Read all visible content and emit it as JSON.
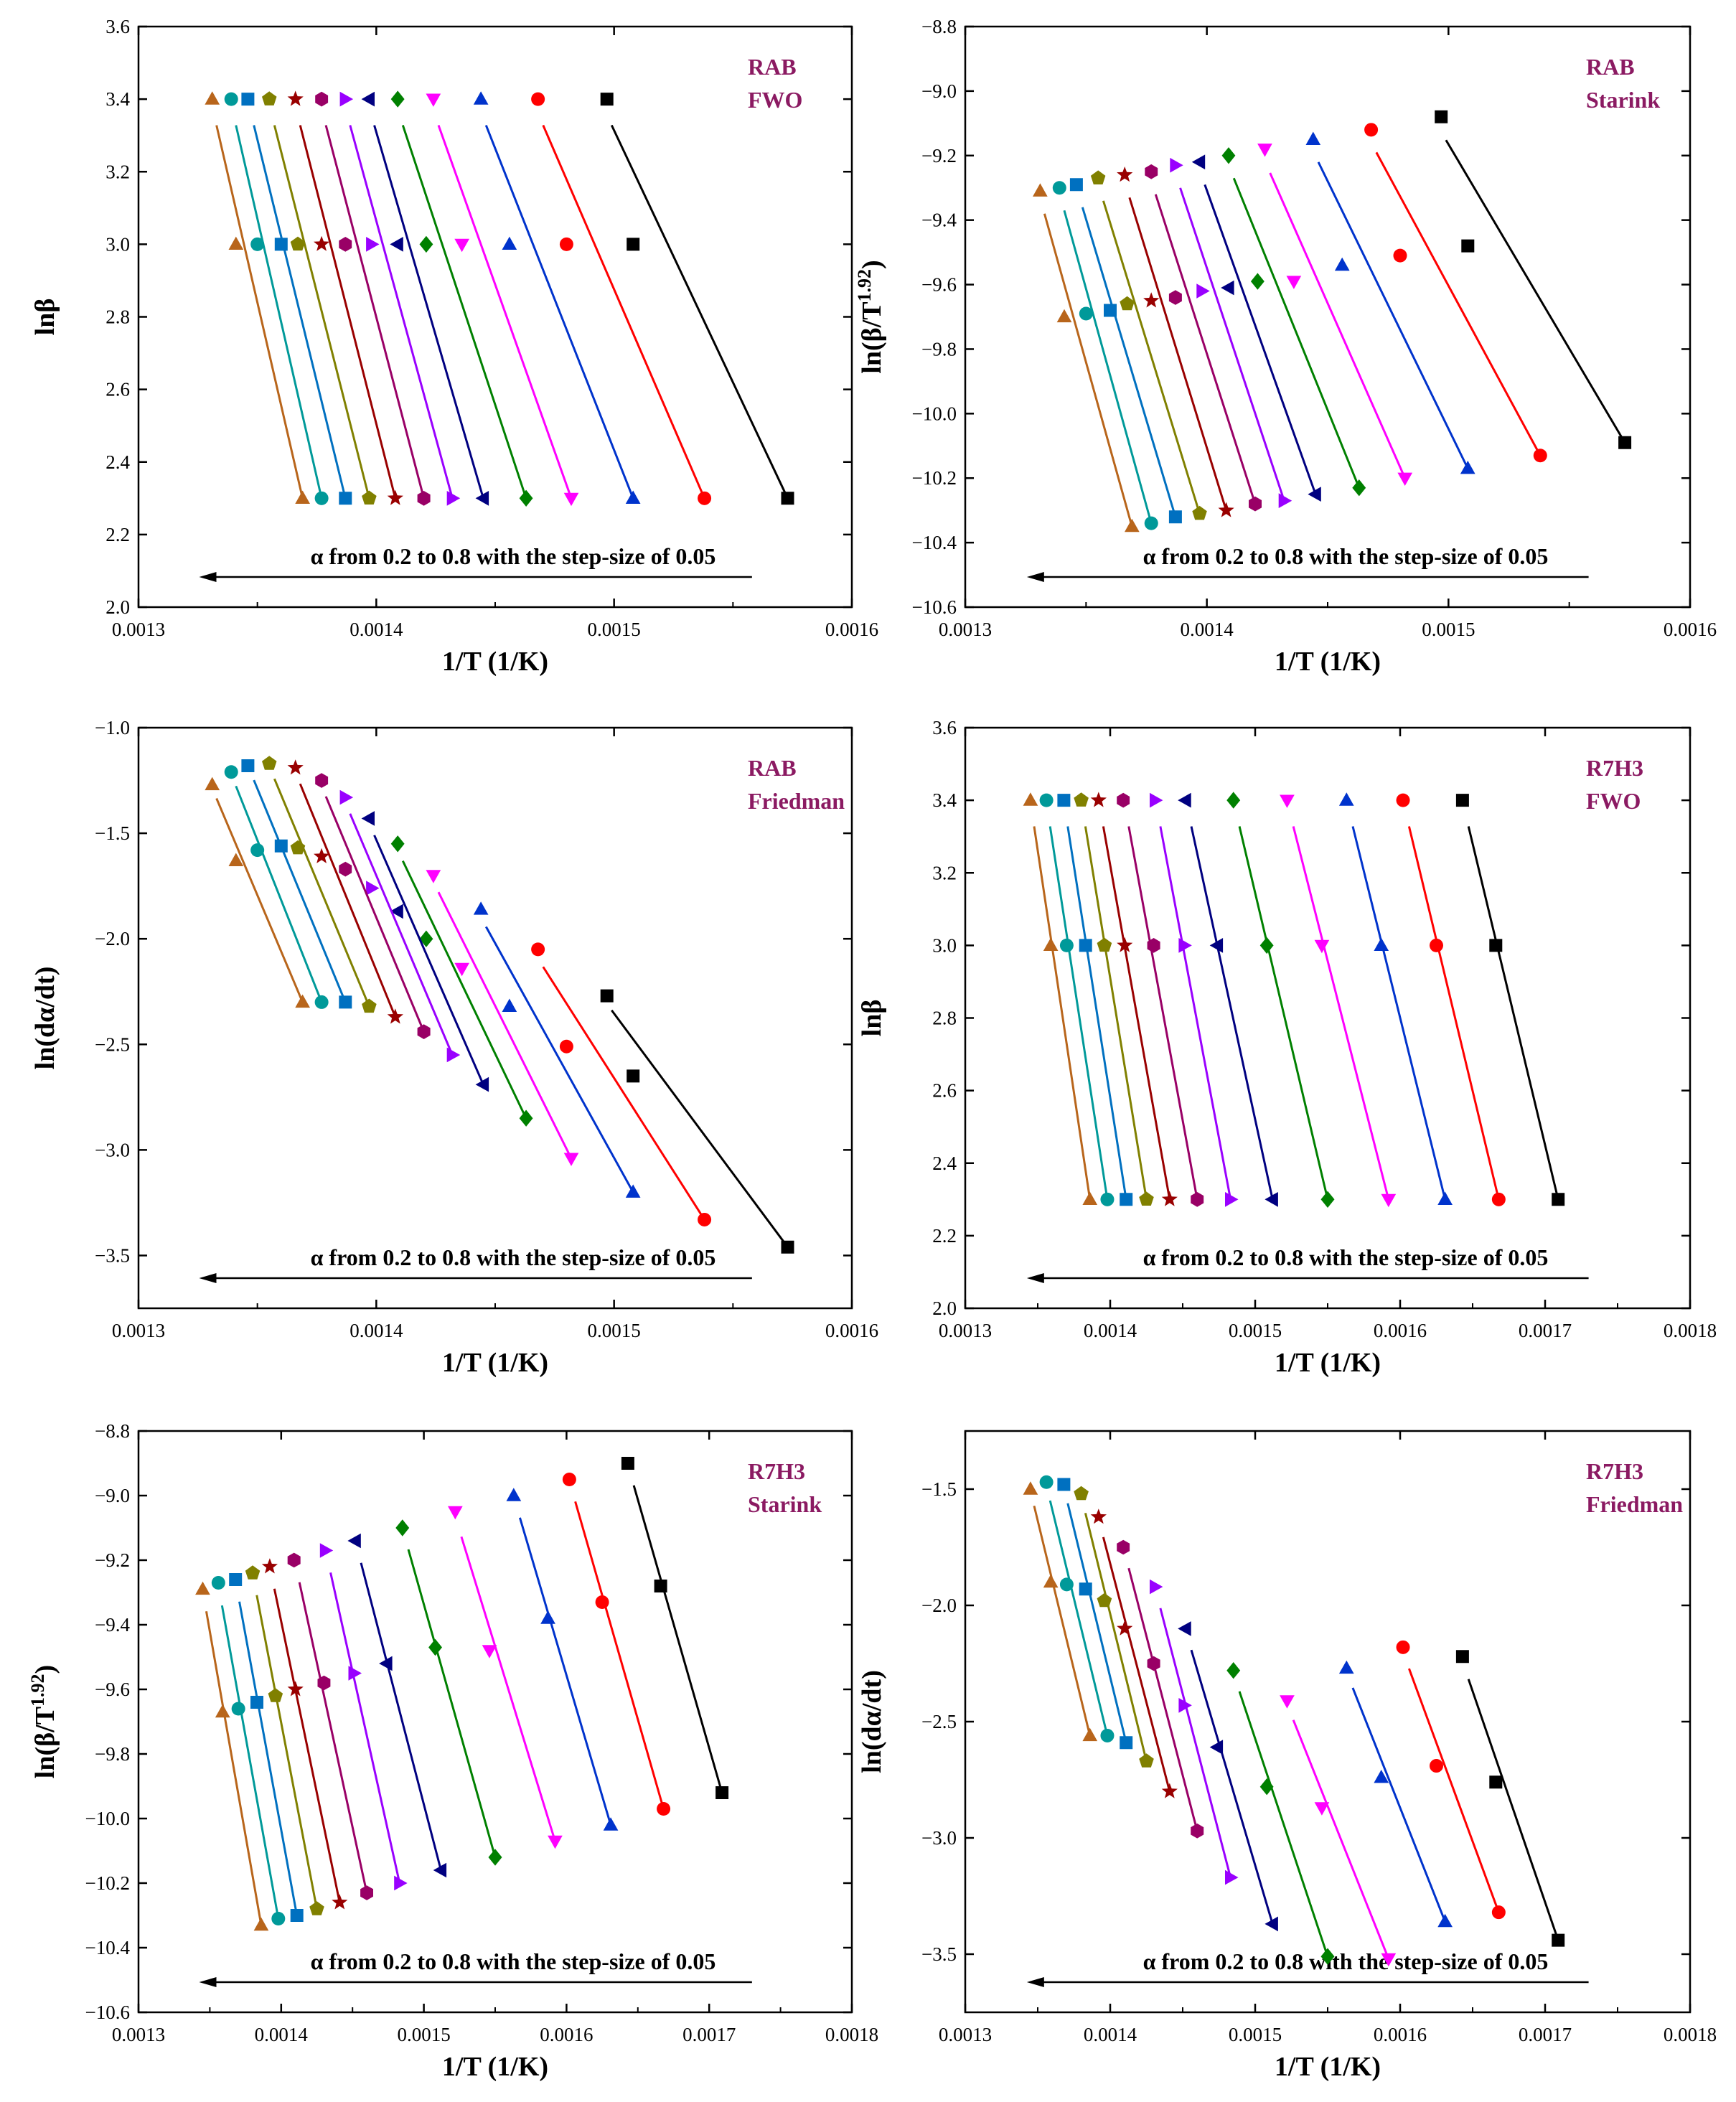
{
  "figure": {
    "annotation": "α from 0.2 to 0.8 with the step-size of 0.05",
    "label_color": "#8B1A62",
    "series_colors": [
      "#000000",
      "#ff0000",
      "#0033cc",
      "#ff00ff",
      "#008000",
      "#000080",
      "#9900ff",
      "#990066",
      "#990000",
      "#808000",
      "#0070c0",
      "#009999",
      "#b8651b"
    ],
    "series_markers": [
      "square",
      "circle",
      "triangle-up",
      "triangle-down",
      "diamond",
      "triangle-left",
      "triangle-right",
      "hexagon",
      "star",
      "pentagon",
      "square",
      "circle",
      "triangle-up"
    ]
  },
  "chart_data": [
    {
      "type": "scatter",
      "title": "RAB FWO",
      "label_lines": [
        "RAB",
        "FWO"
      ],
      "xlabel": "1/T (1/K)",
      "ylabel": "lnβ",
      "xlim": [
        0.0013,
        0.0016
      ],
      "ylim": [
        2.0,
        3.6
      ],
      "xticks": [
        "0.0013",
        "0.0014",
        "0.0015",
        "0.0016"
      ],
      "yticks": [
        "2.0",
        "2.2",
        "2.4",
        "2.6",
        "2.8",
        "3.0",
        "3.2",
        "3.4",
        "3.6"
      ],
      "beta_levels": [
        3.4,
        3.0,
        2.3
      ],
      "series_x": [
        [
          0.001497,
          0.001508,
          0.001573
        ],
        [
          0.001468,
          0.00148,
          0.001538
        ],
        [
          0.001444,
          0.001456,
          0.001508
        ],
        [
          0.001424,
          0.001436,
          0.001482
        ],
        [
          0.001409,
          0.001421,
          0.001463
        ],
        [
          0.001397,
          0.001409,
          0.001445
        ],
        [
          0.001387,
          0.001398,
          0.001432
        ],
        [
          0.001377,
          0.001387,
          0.00142
        ],
        [
          0.001366,
          0.001377,
          0.001408
        ],
        [
          0.001355,
          0.001367,
          0.001397
        ],
        [
          0.001346,
          0.00136,
          0.001387
        ],
        [
          0.001339,
          0.00135,
          0.001377
        ],
        [
          0.001331,
          0.001341,
          0.001369
        ]
      ]
    },
    {
      "type": "scatter",
      "title": "RAB Starink",
      "label_lines": [
        "RAB",
        "Starink"
      ],
      "xlabel": "1/T (1/K)",
      "ylabel": "ln(β/T^1.92)",
      "xlim": [
        0.0013,
        0.0016
      ],
      "ylim": [
        -10.6,
        -8.8
      ],
      "xticks": [
        "0.0013",
        "0.0014",
        "0.0015",
        "0.0016"
      ],
      "yticks": [
        "−10.6",
        "−10.4",
        "−10.2",
        "−10.0",
        "−9.8",
        "−9.6",
        "−9.4",
        "−9.2",
        "−9.0",
        "−8.8"
      ],
      "series_x": [
        [
          0.001497,
          0.001508,
          0.001573
        ],
        [
          0.001468,
          0.00148,
          0.001538
        ],
        [
          0.001444,
          0.001456,
          0.001508
        ],
        [
          0.001424,
          0.001436,
          0.001482
        ],
        [
          0.001409,
          0.001421,
          0.001463
        ],
        [
          0.001397,
          0.001409,
          0.001445
        ],
        [
          0.001387,
          0.001398,
          0.001432
        ],
        [
          0.001377,
          0.001387,
          0.00142
        ],
        [
          0.001366,
          0.001377,
          0.001408
        ],
        [
          0.001355,
          0.001367,
          0.001397
        ],
        [
          0.001346,
          0.00136,
          0.001387
        ],
        [
          0.001339,
          0.00135,
          0.001377
        ],
        [
          0.001331,
          0.001341,
          0.001369
        ]
      ],
      "series_y": [
        [
          -9.08,
          -9.48,
          -10.09
        ],
        [
          -9.12,
          -9.51,
          -10.13
        ],
        [
          -9.15,
          -9.54,
          -10.17
        ],
        [
          -9.18,
          -9.59,
          -10.2
        ],
        [
          -9.2,
          -9.59,
          -10.23
        ],
        [
          -9.22,
          -9.61,
          -10.25
        ],
        [
          -9.23,
          -9.62,
          -10.27
        ],
        [
          -9.25,
          -9.64,
          -10.28
        ],
        [
          -9.26,
          -9.65,
          -10.3
        ],
        [
          -9.27,
          -9.66,
          -10.31
        ],
        [
          -9.29,
          -9.68,
          -10.32
        ],
        [
          -9.3,
          -9.69,
          -10.34
        ],
        [
          -9.31,
          -9.7,
          -10.35
        ]
      ]
    },
    {
      "type": "scatter",
      "title": "RAB Friedman",
      "label_lines": [
        "RAB",
        "Friedman"
      ],
      "xlabel": "1/T (1/K)",
      "ylabel": "ln(dα/dt)",
      "xlim": [
        0.0013,
        0.0016
      ],
      "ylim": [
        -3.75,
        -1.0
      ],
      "xticks": [
        "0.0013",
        "0.0014",
        "0.0015",
        "0.0016"
      ],
      "yticks": [
        "−3.5",
        "−3.0",
        "−2.5",
        "−2.0",
        "−1.5",
        "−1.0"
      ],
      "ytick_values": [
        -3.5,
        -3.0,
        -2.5,
        -2.0,
        -1.5,
        -1.0
      ],
      "series_x": [
        [
          0.001497,
          0.001508,
          0.001573
        ],
        [
          0.001468,
          0.00148,
          0.001538
        ],
        [
          0.001444,
          0.001456,
          0.001508
        ],
        [
          0.001424,
          0.001436,
          0.001482
        ],
        [
          0.001409,
          0.001421,
          0.001463
        ],
        [
          0.001397,
          0.001409,
          0.001445
        ],
        [
          0.001387,
          0.001398,
          0.001432
        ],
        [
          0.001377,
          0.001387,
          0.00142
        ],
        [
          0.001366,
          0.001377,
          0.001408
        ],
        [
          0.001355,
          0.001367,
          0.001397
        ],
        [
          0.001346,
          0.00136,
          0.001387
        ],
        [
          0.001339,
          0.00135,
          0.001377
        ],
        [
          0.001331,
          0.001341,
          0.001369
        ]
      ],
      "series_y": [
        [
          -2.27,
          -2.65,
          -3.46
        ],
        [
          -2.05,
          -2.51,
          -3.33
        ],
        [
          -1.86,
          -2.32,
          -3.2
        ],
        [
          -1.7,
          -2.14,
          -3.04
        ],
        [
          -1.55,
          -2.0,
          -2.85
        ],
        [
          -1.43,
          -1.87,
          -2.69
        ],
        [
          -1.33,
          -1.76,
          -2.55
        ],
        [
          -1.25,
          -1.67,
          -2.44
        ],
        [
          -1.19,
          -1.61,
          -2.37
        ],
        [
          -1.17,
          -1.57,
          -2.32
        ],
        [
          -1.18,
          -1.56,
          -2.3
        ],
        [
          -1.21,
          -1.58,
          -2.3
        ],
        [
          -1.27,
          -1.63,
          -2.3
        ]
      ]
    },
    {
      "type": "scatter",
      "title": "R7H3 FWO",
      "label_lines": [
        "R7H3",
        "FWO"
      ],
      "xlabel": "1/T (1/K)",
      "ylabel": "lnβ",
      "xlim": [
        0.0013,
        0.0018
      ],
      "ylim": [
        2.0,
        3.6
      ],
      "xticks": [
        "0.0013",
        "0.0014",
        "0.0015",
        "0.0016",
        "0.0017",
        "0.0018"
      ],
      "yticks": [
        "2.0",
        "2.2",
        "2.4",
        "2.6",
        "2.8",
        "3.0",
        "3.2",
        "3.4",
        "3.6"
      ],
      "beta_levels": [
        3.4,
        3.0,
        2.3
      ],
      "series_x": [
        [
          0.001643,
          0.001666,
          0.001709
        ],
        [
          0.001602,
          0.001625,
          0.001668
        ],
        [
          0.001563,
          0.001587,
          0.001631
        ],
        [
          0.001522,
          0.001546,
          0.001592
        ],
        [
          0.001485,
          0.001508,
          0.00155
        ],
        [
          0.001452,
          0.001474,
          0.001512
        ],
        [
          0.001431,
          0.001451,
          0.001483
        ],
        [
          0.001409,
          0.00143,
          0.00146
        ],
        [
          0.001392,
          0.00141,
          0.001441
        ],
        [
          0.00138,
          0.001396,
          0.001425
        ],
        [
          0.001368,
          0.001383,
          0.001411
        ],
        [
          0.001356,
          0.00137,
          0.001398
        ],
        [
          0.001345,
          0.001359,
          0.001386
        ]
      ]
    },
    {
      "type": "scatter",
      "title": "R7H3 Starink",
      "label_lines": [
        "R7H3",
        "Starink"
      ],
      "xlabel": "1/T (1/K)",
      "ylabel": "ln(β/T^1.92)",
      "xlim": [
        0.0013,
        0.0018
      ],
      "ylim": [
        -10.6,
        -8.8
      ],
      "xticks": [
        "0.0013",
        "0.0014",
        "0.0015",
        "0.0016",
        "0.0017",
        "0.0018"
      ],
      "yticks": [
        "−10.6",
        "−10.4",
        "−10.2",
        "−10.0",
        "−9.8",
        "−9.6",
        "−9.4",
        "−9.2",
        "−9.0",
        "−8.8"
      ],
      "series_x": [
        [
          0.001643,
          0.001666,
          0.001709
        ],
        [
          0.001602,
          0.001625,
          0.001668
        ],
        [
          0.001563,
          0.001587,
          0.001631
        ],
        [
          0.001522,
          0.001546,
          0.001592
        ],
        [
          0.001485,
          0.001508,
          0.00155
        ],
        [
          0.001452,
          0.001474,
          0.001512
        ],
        [
          0.001431,
          0.001451,
          0.001483
        ],
        [
          0.001409,
          0.00143,
          0.00146
        ],
        [
          0.001392,
          0.00141,
          0.001441
        ],
        [
          0.00138,
          0.001396,
          0.001425
        ],
        [
          0.001368,
          0.001383,
          0.001411
        ],
        [
          0.001356,
          0.00137,
          0.001398
        ],
        [
          0.001345,
          0.001359,
          0.001386
        ]
      ],
      "series_y": [
        [
          -8.9,
          -9.28,
          -9.92
        ],
        [
          -8.95,
          -9.33,
          -9.97
        ],
        [
          -9.0,
          -9.38,
          -10.02
        ],
        [
          -9.05,
          -9.48,
          -10.07
        ],
        [
          -9.1,
          -9.47,
          -10.12
        ],
        [
          -9.14,
          -9.52,
          -10.16
        ],
        [
          -9.17,
          -9.55,
          -10.2
        ],
        [
          -9.2,
          -9.58,
          -10.23
        ],
        [
          -9.22,
          -9.6,
          -10.26
        ],
        [
          -9.24,
          -9.62,
          -10.28
        ],
        [
          -9.26,
          -9.64,
          -10.3
        ],
        [
          -9.27,
          -9.66,
          -10.31
        ],
        [
          -9.29,
          -9.67,
          -10.33
        ]
      ]
    },
    {
      "type": "scatter",
      "title": "R7H3 Friedman",
      "label_lines": [
        "R7H3",
        "Friedman"
      ],
      "xlabel": "1/T (1/K)",
      "ylabel": "ln(dα/dt)",
      "xlim": [
        0.0013,
        0.0018
      ],
      "ylim": [
        -3.75,
        -1.25
      ],
      "xticks": [
        "0.0013",
        "0.0014",
        "0.0015",
        "0.0016",
        "0.0017",
        "0.0018"
      ],
      "yticks": [
        "−3.5",
        "−3.0",
        "−2.5",
        "−2.0",
        "−1.5"
      ],
      "ytick_values": [
        -3.5,
        -3.0,
        -2.5,
        -2.0,
        -1.5
      ],
      "series_x": [
        [
          0.001643,
          0.001666,
          0.001709
        ],
        [
          0.001602,
          0.001625,
          0.001668
        ],
        [
          0.001563,
          0.001587,
          0.001631
        ],
        [
          0.001522,
          0.001546,
          0.001592
        ],
        [
          0.001485,
          0.001508,
          0.00155
        ],
        [
          0.001452,
          0.001474,
          0.001512
        ],
        [
          0.001431,
          0.001451,
          0.001483
        ],
        [
          0.001409,
          0.00143,
          0.00146
        ],
        [
          0.001392,
          0.00141,
          0.001441
        ],
        [
          0.00138,
          0.001396,
          0.001425
        ],
        [
          0.001368,
          0.001383,
          0.001411
        ],
        [
          0.001356,
          0.00137,
          0.001398
        ],
        [
          0.001345,
          0.001359,
          0.001386
        ]
      ],
      "series_y": [
        [
          -2.22,
          -2.76,
          -3.44
        ],
        [
          -2.18,
          -2.69,
          -3.32
        ],
        [
          -2.27,
          -2.74,
          -3.36
        ],
        [
          -2.41,
          -2.87,
          -3.52
        ],
        [
          -2.28,
          -2.78,
          -3.51
        ],
        [
          -2.1,
          -2.61,
          -3.37
        ],
        [
          -1.92,
          -2.43,
          -3.17
        ],
        [
          -1.75,
          -2.25,
          -2.97
        ],
        [
          -1.62,
          -2.1,
          -2.8
        ],
        [
          -1.52,
          -1.98,
          -2.67
        ],
        [
          -1.48,
          -1.93,
          -2.59
        ],
        [
          -1.47,
          -1.91,
          -2.56
        ],
        [
          -1.5,
          -1.9,
          -2.56
        ]
      ]
    }
  ]
}
